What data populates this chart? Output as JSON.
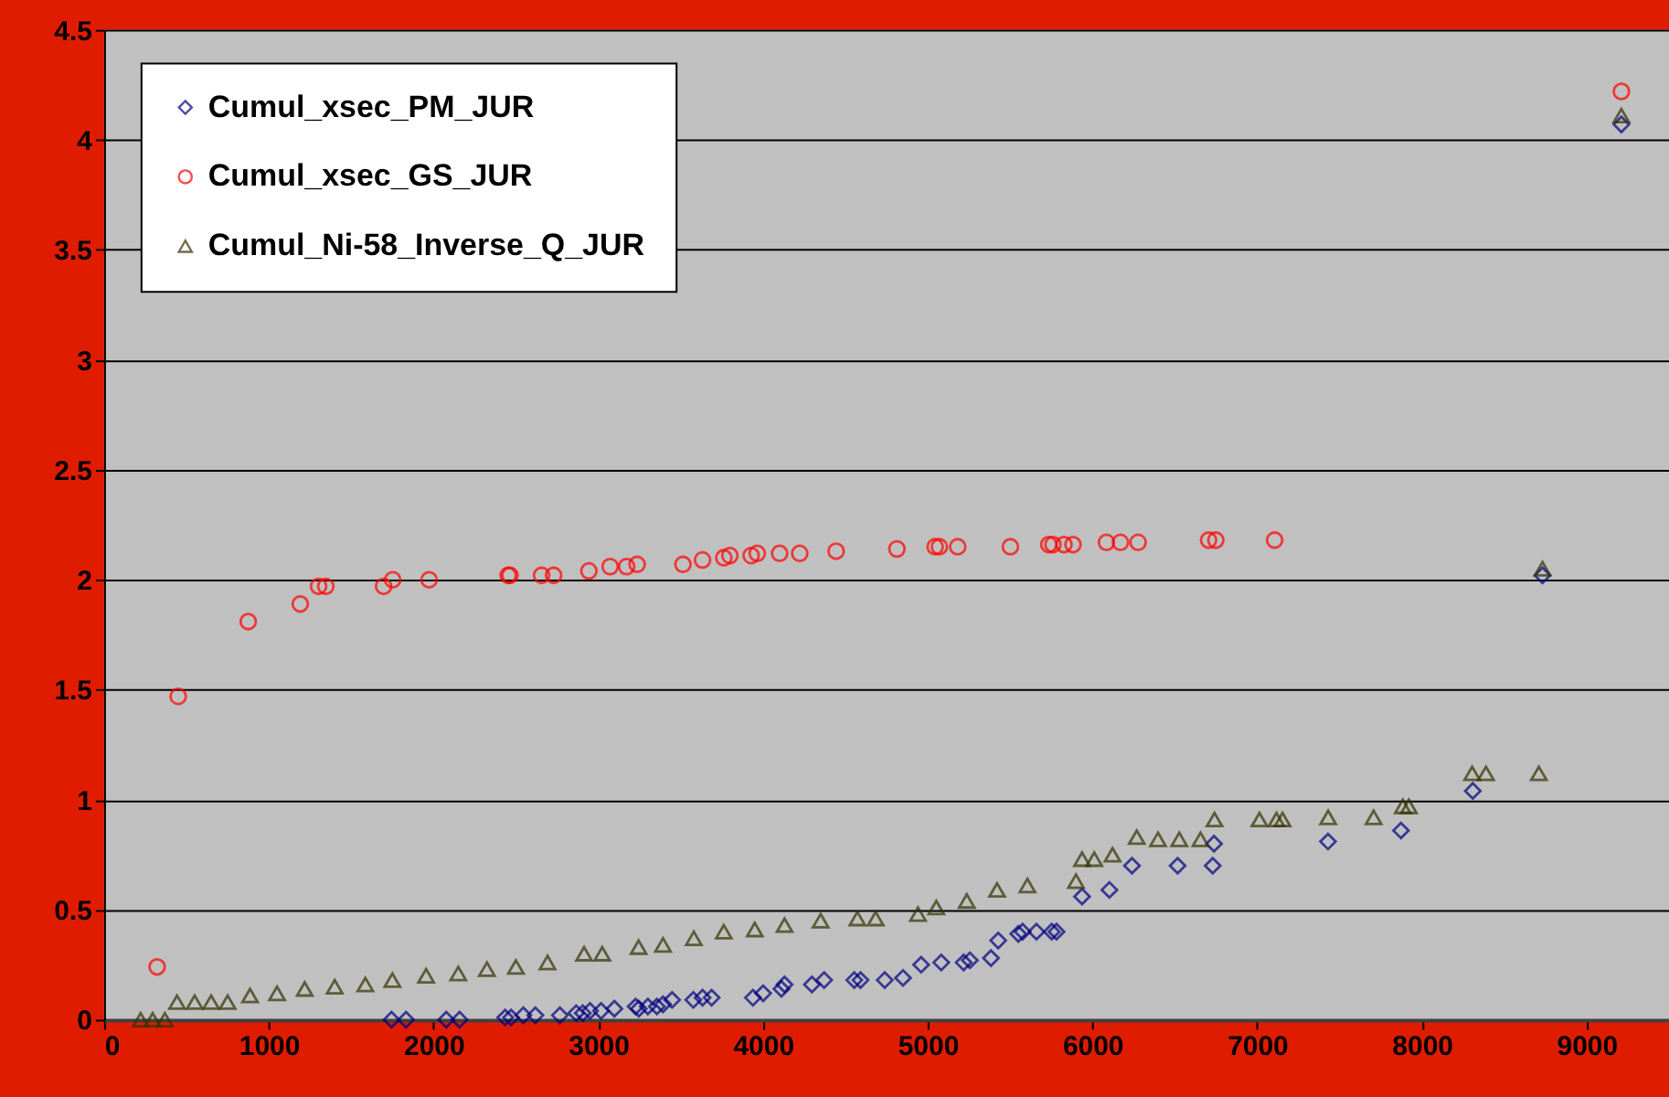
{
  "chart_data": {
    "type": "scatter",
    "xlim": [
      0,
      9500
    ],
    "xticks": [
      0,
      1000,
      2000,
      3000,
      4000,
      5000,
      6000,
      7000,
      8000,
      9000
    ],
    "ylim": [
      0,
      4.5
    ],
    "yticks": [
      0,
      0.5,
      1,
      1.5,
      2,
      2.5,
      3,
      3.5,
      4,
      4.5
    ],
    "grid": "y",
    "legend": "top left",
    "series": [
      {
        "name": "Cumul_xsec_PM_JUR",
        "color": "#000080",
        "marker": "diamond",
        "x": [
          1745,
          1833,
          2077,
          2158,
          2435,
          2471,
          2545,
          2618,
          2767,
          2866,
          2906,
          2950,
          3017,
          3098,
          3227,
          3246,
          3301,
          3356,
          3393,
          3448,
          3577,
          3633,
          3688,
          3939,
          4001,
          4112,
          4131,
          4297,
          4371,
          4554,
          4592,
          4739,
          4850,
          4960,
          5082,
          5218,
          5256,
          5384,
          5428,
          5550,
          5576,
          5660,
          5753,
          5782,
          5937,
          6103,
          6240,
          6517,
          6730,
          6738,
          7430,
          7873,
          8309,
          8732,
          9211
        ],
        "values": [
          0.0,
          0.0,
          0.0,
          0.0,
          0.01,
          0.01,
          0.02,
          0.02,
          0.02,
          0.03,
          0.03,
          0.04,
          0.04,
          0.05,
          0.06,
          0.05,
          0.06,
          0.06,
          0.07,
          0.09,
          0.09,
          0.1,
          0.1,
          0.1,
          0.12,
          0.14,
          0.16,
          0.16,
          0.18,
          0.18,
          0.18,
          0.18,
          0.19,
          0.25,
          0.26,
          0.26,
          0.27,
          0.28,
          0.36,
          0.39,
          0.4,
          0.4,
          0.4,
          0.4,
          0.56,
          0.59,
          0.7,
          0.7,
          0.7,
          0.8,
          0.81,
          0.86,
          1.04,
          2.02,
          4.07
        ]
      },
      {
        "name": "Cumul_xsec_GS_JUR",
        "color": "#ff0000",
        "marker": "circle",
        "x": [
          322,
          450,
          875,
          1191,
          1302,
          1346,
          1697,
          1752,
          1973,
          2453,
          2464,
          2656,
          2729,
          2943,
          3072,
          3172,
          3236,
          3514,
          3633,
          3762,
          3799,
          3928,
          3965,
          4101,
          4223,
          4444,
          4813,
          5045,
          5071,
          5182,
          5502,
          5735,
          5760,
          5827,
          5882,
          6085,
          6170,
          6277,
          6705,
          6749,
          7106,
          9211
        ],
        "values": [
          0.24,
          1.47,
          1.81,
          1.89,
          1.97,
          1.97,
          1.97,
          2.0,
          2.0,
          2.02,
          2.02,
          2.02,
          2.02,
          2.04,
          2.06,
          2.06,
          2.07,
          2.07,
          2.09,
          2.1,
          2.11,
          2.11,
          2.12,
          2.12,
          2.12,
          2.13,
          2.14,
          2.15,
          2.15,
          2.15,
          2.15,
          2.16,
          2.16,
          2.16,
          2.16,
          2.17,
          2.17,
          2.17,
          2.18,
          2.18,
          2.18,
          4.22
        ]
      },
      {
        "name": "Cumul_Ni-58_Inverse_Q_JUR",
        "color": "#333300",
        "marker": "triangle",
        "x": [
          222,
          295,
          369,
          443,
          550,
          650,
          750,
          886,
          1050,
          1218,
          1400,
          1586,
          1750,
          1955,
          2150,
          2324,
          2500,
          2692,
          2914,
          3024,
          3245,
          3393,
          3580,
          3762,
          3950,
          4131,
          4350,
          4573,
          4684,
          4941,
          5052,
          5237,
          5421,
          5605,
          5900,
          5937,
          6011,
          6122,
          6269,
          6398,
          6527,
          6656,
          6741,
          7014,
          7117,
          7154,
          7431,
          7707,
          7884,
          7921,
          8305,
          8389,
          8710,
          8732,
          9211
        ],
        "values": [
          0.0,
          0.0,
          0.0,
          0.08,
          0.08,
          0.08,
          0.08,
          0.11,
          0.12,
          0.14,
          0.15,
          0.16,
          0.18,
          0.2,
          0.21,
          0.23,
          0.24,
          0.26,
          0.3,
          0.3,
          0.33,
          0.34,
          0.37,
          0.4,
          0.41,
          0.43,
          0.45,
          0.46,
          0.46,
          0.48,
          0.51,
          0.54,
          0.59,
          0.61,
          0.63,
          0.73,
          0.73,
          0.75,
          0.83,
          0.82,
          0.82,
          0.82,
          0.91,
          0.91,
          0.91,
          0.91,
          0.92,
          0.92,
          0.97,
          0.97,
          1.12,
          1.12,
          1.12,
          2.05,
          4.11
        ]
      }
    ]
  }
}
